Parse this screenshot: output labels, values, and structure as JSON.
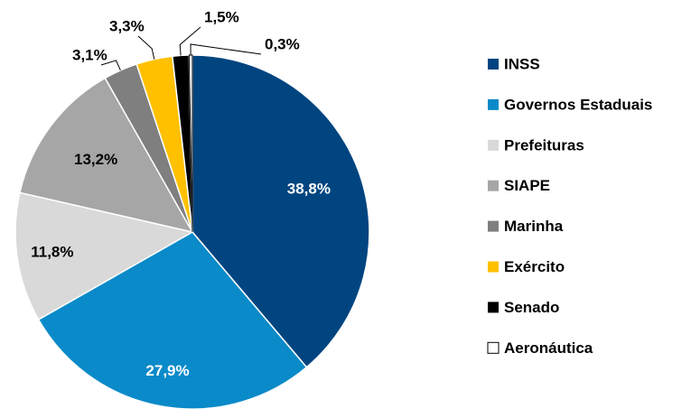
{
  "chart_data": {
    "type": "pie",
    "categories": [
      "INSS",
      "Governos Estaduais",
      "Prefeituras",
      "SIAPE",
      "Marinha",
      "Exército",
      "Senado",
      "Aeronáutica"
    ],
    "values": [
      38.8,
      27.9,
      11.8,
      13.2,
      3.1,
      3.3,
      1.5,
      0.3
    ],
    "value_labels": [
      "38,8%",
      "27,9%",
      "11,8%",
      "13,2%",
      "3,1%",
      "3,3%",
      "1,5%",
      "0,3%"
    ],
    "colors": [
      "#004580",
      "#0a8ac9",
      "#d9d9d9",
      "#a6a6a6",
      "#7f7f7f",
      "#ffc000",
      "#000000",
      "#ffffff"
    ],
    "legend": "right"
  }
}
